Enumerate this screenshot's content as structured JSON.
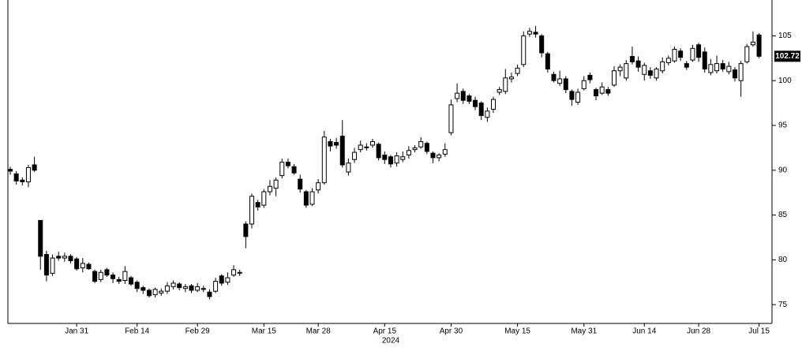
{
  "chart_data": {
    "type": "candlestick",
    "xlabel": "2024",
    "categories": [
      null,
      null,
      null,
      null,
      null,
      null,
      null,
      null,
      null,
      null,
      null,
      "Jan 31",
      null,
      null,
      null,
      null,
      null,
      null,
      null,
      null,
      null,
      "Feb 14",
      null,
      null,
      null,
      null,
      null,
      null,
      null,
      null,
      null,
      "Feb 29",
      null,
      null,
      null,
      null,
      null,
      null,
      null,
      null,
      null,
      null,
      "Mar 15",
      null,
      null,
      null,
      null,
      null,
      null,
      null,
      null,
      "Mar 28",
      null,
      null,
      null,
      null,
      null,
      null,
      null,
      null,
      null,
      null,
      "Apr 15",
      null,
      null,
      null,
      null,
      null,
      null,
      null,
      null,
      null,
      null,
      "Apr 30",
      null,
      null,
      null,
      null,
      null,
      null,
      null,
      null,
      null,
      null,
      "May 15",
      null,
      null,
      null,
      null,
      null,
      null,
      null,
      null,
      null,
      null,
      "May 31",
      null,
      null,
      null,
      null,
      null,
      null,
      null,
      null,
      null,
      "Jun 14",
      null,
      null,
      null,
      null,
      null,
      null,
      null,
      null,
      "Jun 28",
      null,
      null,
      null,
      null,
      null,
      null,
      null,
      null,
      null,
      "Jul 15"
    ],
    "open": [
      90.1,
      89.6,
      88.9,
      88.7,
      90.6,
      84.4,
      80.6,
      78.5,
      80.4,
      80.2,
      80.4,
      80.1,
      79.1,
      79.5,
      78.7,
      77.8,
      78.9,
      78.3,
      77.8,
      77.7,
      78.0,
      77.5,
      76.9,
      76.6,
      76.1,
      76.3,
      76.5,
      77.0,
      77.3,
      76.8,
      77.1,
      76.6,
      76.8,
      76.4,
      76.5,
      78.2,
      77.5,
      78.3,
      78.5,
      84.0,
      84.0,
      86.4,
      86.1,
      87.6,
      88.0,
      89.4,
      90.9,
      90.4,
      89.0,
      87.6,
      86.2,
      87.8,
      88.6,
      93.2,
      93.1,
      93.8,
      89.8,
      91.2,
      92.3,
      92.6,
      92.8,
      92.9,
      91.7,
      91.5,
      90.8,
      91.2,
      91.7,
      92.3,
      92.6,
      93.0,
      91.9,
      91.4,
      91.8,
      94.2,
      98.0,
      98.8,
      98.3,
      97.8,
      97.5,
      95.9,
      96.8,
      98.7,
      98.8,
      100.2,
      100.8,
      101.8,
      105.2,
      105.4,
      105.0,
      103.0,
      100.7,
      99.7,
      100.2,
      98.8,
      97.6,
      99.1,
      100.6,
      99.0,
      98.6,
      99.0,
      99.5,
      101.1,
      100.3,
      102.7,
      102.2,
      100.7,
      101.1,
      100.3,
      101.1,
      102.0,
      102.2,
      103.3,
      101.9,
      102.3,
      104.0,
      103.2,
      100.9,
      101.1,
      101.9,
      101.0,
      101.2,
      100.0,
      102.1,
      104.0,
      105.1
    ],
    "high": [
      90.4,
      89.9,
      89.2,
      90.6,
      91.5,
      84.4,
      81.0,
      80.6,
      80.9,
      80.8,
      80.6,
      80.3,
      80.2,
      79.7,
      78.9,
      78.9,
      79.1,
      78.6,
      78.1,
      79.3,
      78.2,
      77.7,
      77.1,
      76.8,
      76.9,
      76.8,
      77.5,
      77.7,
      77.5,
      77.3,
      77.3,
      77.4,
      77.1,
      76.7,
      78.0,
      78.4,
      78.6,
      79.4,
      78.9,
      84.3,
      87.4,
      86.7,
      87.9,
      88.9,
      89.2,
      91.3,
      91.3,
      90.7,
      89.5,
      87.8,
      88.0,
      89.0,
      94.4,
      93.5,
      93.6,
      95.6,
      91.3,
      92.5,
      93.3,
      93.0,
      93.5,
      93.1,
      92.1,
      91.7,
      92.0,
      92.1,
      92.7,
      92.8,
      93.7,
      93.2,
      92.1,
      91.9,
      93.0,
      97.9,
      99.7,
      99.1,
      98.5,
      98.2,
      97.7,
      97.0,
      98.2,
      99.3,
      101.3,
      100.9,
      101.8,
      105.5,
      105.9,
      106.1,
      105.2,
      103.2,
      101.0,
      101.1,
      100.5,
      99.0,
      99.1,
      100.5,
      100.9,
      99.2,
      99.8,
      99.3,
      101.6,
      101.8,
      102.3,
      103.8,
      102.7,
      102.0,
      101.5,
      101.5,
      102.6,
      102.8,
      103.8,
      103.6,
      102.2,
      104.0,
      104.2,
      103.7,
      102.4,
      102.8,
      102.3,
      102.1,
      101.5,
      102.2,
      104.1,
      105.5,
      105.3
    ],
    "low": [
      89.5,
      88.4,
      88.3,
      88.1,
      89.8,
      78.9,
      77.6,
      78.2,
      79.9,
      79.8,
      79.6,
      78.8,
      78.6,
      78.9,
      77.4,
      77.5,
      78.1,
      77.4,
      77.3,
      77.3,
      77.1,
      76.4,
      76.2,
      75.8,
      75.8,
      76.0,
      76.2,
      76.7,
      76.6,
      76.4,
      76.3,
      76.4,
      76.4,
      75.6,
      76.3,
      77.1,
      77.2,
      78.1,
      78.2,
      81.3,
      83.5,
      85.5,
      85.8,
      87.2,
      87.1,
      89.1,
      90.2,
      89.5,
      87.5,
      85.8,
      86.0,
      87.4,
      88.4,
      92.1,
      92.4,
      90.3,
      89.4,
      90.8,
      92.0,
      92.2,
      92.5,
      91.1,
      90.7,
      90.3,
      90.4,
      90.9,
      91.3,
      92.0,
      92.4,
      91.8,
      90.8,
      91.0,
      91.5,
      93.9,
      97.6,
      97.4,
      97.4,
      96.7,
      95.6,
      95.4,
      96.4,
      98.4,
      98.5,
      99.8,
      100.5,
      101.5,
      104.9,
      104.8,
      102.6,
      100.9,
      99.8,
      99.4,
      98.6,
      97.2,
      97.3,
      98.9,
      99.7,
      97.8,
      98.4,
      98.3,
      99.3,
      100.5,
      100.0,
      101.8,
      101.0,
      100.0,
      100.2,
      100.0,
      100.8,
      101.7,
      102.0,
      102.2,
      101.2,
      102.1,
      102.1,
      100.9,
      100.6,
      100.8,
      101.0,
      100.7,
      99.9,
      98.2,
      101.9,
      103.8,
      102.5
    ],
    "close": [
      89.9,
      88.8,
      88.7,
      90.3,
      90.0,
      80.4,
      78.3,
      80.2,
      80.2,
      80.4,
      79.9,
      79.0,
      79.6,
      79.0,
      77.6,
      78.6,
      78.3,
      77.9,
      77.6,
      78.7,
      77.3,
      76.8,
      76.6,
      76.0,
      76.7,
      76.5,
      77.1,
      77.4,
      76.9,
      77.0,
      76.6,
      77.0,
      76.7,
      75.9,
      77.6,
      77.4,
      78.0,
      78.9,
      78.6,
      82.6,
      87.1,
      85.9,
      87.6,
      88.2,
      88.9,
      90.9,
      90.5,
      89.7,
      87.9,
      86.1,
      87.6,
      88.6,
      93.7,
      92.7,
      92.8,
      90.6,
      90.8,
      92.0,
      92.8,
      92.6,
      93.2,
      91.4,
      91.2,
      90.7,
      91.6,
      91.5,
      92.2,
      92.5,
      93.2,
      92.1,
      91.4,
      91.7,
      92.3,
      97.3,
      98.6,
      97.8,
      97.7,
      97.1,
      96.1,
      96.6,
      97.9,
      99.0,
      100.3,
      100.4,
      101.4,
      105.0,
      105.5,
      105.2,
      103.1,
      101.3,
      100.0,
      100.2,
      99.0,
      97.9,
      98.7,
      100.0,
      100.1,
      98.3,
      99.3,
      98.6,
      101.1,
      101.5,
      101.9,
      102.1,
      101.5,
      101.7,
      100.6,
      101.3,
      102.1,
      102.5,
      103.5,
      102.6,
      101.5,
      103.6,
      102.6,
      101.3,
      101.8,
      101.9,
      101.3,
      101.6,
      100.3,
      101.9,
      103.8,
      104.3,
      102.72
    ],
    "up_color": "#ffffff",
    "down_color": "#000000",
    "ylim": [
      72.9,
      109
    ],
    "yticks": [
      75,
      80,
      85,
      90,
      95,
      100,
      105
    ]
  }
}
